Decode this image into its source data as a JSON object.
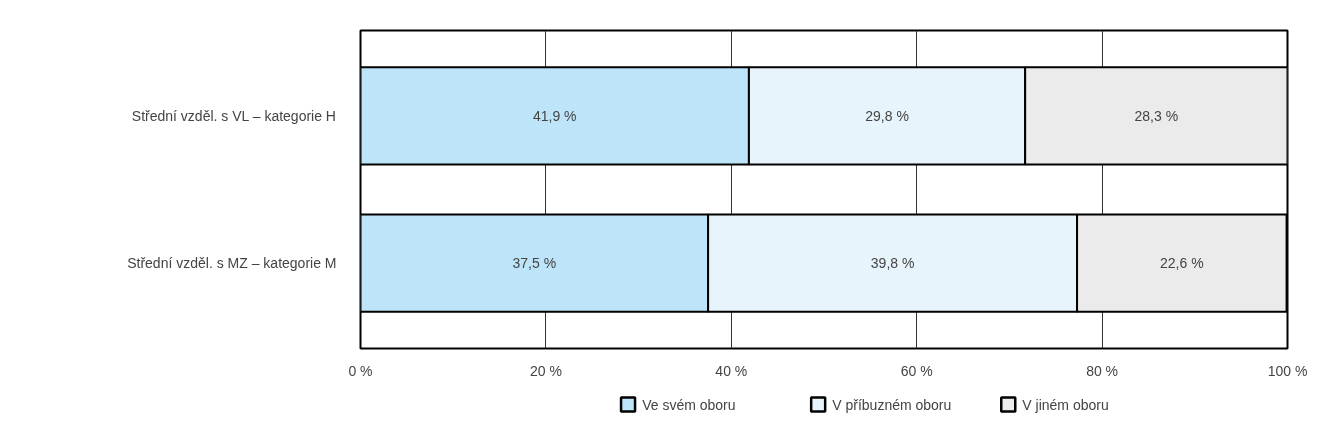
{
  "chart_data": {
    "type": "bar",
    "orientation": "horizontal",
    "stacked": true,
    "categories": [
      "Střední vzděl. s VL – kategorie H",
      "Střední vzděl. s MZ – kategorie M"
    ],
    "series": [
      {
        "name": "Ve svém oboru",
        "color": "#bde4f8",
        "values": [
          41.9,
          37.5
        ],
        "value_labels": [
          "41,9 %",
          "37,5 %"
        ]
      },
      {
        "name": "V příbuzném oboru",
        "color": "#e8f4fc",
        "values": [
          29.8,
          39.8
        ],
        "value_labels": [
          "29,8 %",
          "39,8 %"
        ]
      },
      {
        "name": "V jiném oboru",
        "color": "#ebebeb",
        "values": [
          28.3,
          22.6
        ],
        "value_labels": [
          "28,3 %",
          "22,6 %"
        ]
      }
    ],
    "xlim": [
      0,
      100
    ],
    "xticks": [
      {
        "value": 0,
        "label": "0 %"
      },
      {
        "value": 20,
        "label": "20 %"
      },
      {
        "value": 40,
        "label": "40 %"
      },
      {
        "value": 60,
        "label": "60 %"
      },
      {
        "value": 80,
        "label": "80 %"
      },
      {
        "value": 100,
        "label": "100 %"
      }
    ],
    "grid": "x",
    "legend": "bottom"
  }
}
